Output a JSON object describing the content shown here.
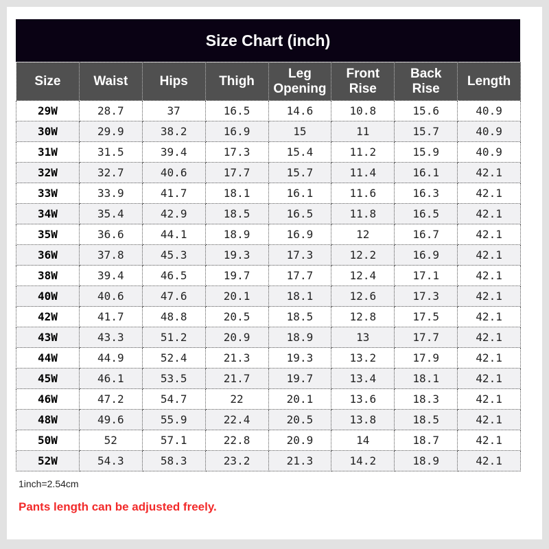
{
  "chart_data": {
    "type": "table",
    "title": "Size Chart  (inch)",
    "columns": [
      "Size",
      "Waist",
      "Hips",
      "Thigh",
      "Leg Opening",
      "Front Rise",
      "Back Rise",
      "Length"
    ],
    "rows": [
      [
        "29W",
        "28.7",
        "37",
        "16.5",
        "14.6",
        "10.8",
        "15.6",
        "40.9"
      ],
      [
        "30W",
        "29.9",
        "38.2",
        "16.9",
        "15",
        "11",
        "15.7",
        "40.9"
      ],
      [
        "31W",
        "31.5",
        "39.4",
        "17.3",
        "15.4",
        "11.2",
        "15.9",
        "40.9"
      ],
      [
        "32W",
        "32.7",
        "40.6",
        "17.7",
        "15.7",
        "11.4",
        "16.1",
        "42.1"
      ],
      [
        "33W",
        "33.9",
        "41.7",
        "18.1",
        "16.1",
        "11.6",
        "16.3",
        "42.1"
      ],
      [
        "34W",
        "35.4",
        "42.9",
        "18.5",
        "16.5",
        "11.8",
        "16.5",
        "42.1"
      ],
      [
        "35W",
        "36.6",
        "44.1",
        "18.9",
        "16.9",
        "12",
        "16.7",
        "42.1"
      ],
      [
        "36W",
        "37.8",
        "45.3",
        "19.3",
        "17.3",
        "12.2",
        "16.9",
        "42.1"
      ],
      [
        "38W",
        "39.4",
        "46.5",
        "19.7",
        "17.7",
        "12.4",
        "17.1",
        "42.1"
      ],
      [
        "40W",
        "40.6",
        "47.6",
        "20.1",
        "18.1",
        "12.6",
        "17.3",
        "42.1"
      ],
      [
        "42W",
        "41.7",
        "48.8",
        "20.5",
        "18.5",
        "12.8",
        "17.5",
        "42.1"
      ],
      [
        "43W",
        "43.3",
        "51.2",
        "20.9",
        "18.9",
        "13",
        "17.7",
        "42.1"
      ],
      [
        "44W",
        "44.9",
        "52.4",
        "21.3",
        "19.3",
        "13.2",
        "17.9",
        "42.1"
      ],
      [
        "45W",
        "46.1",
        "53.5",
        "21.7",
        "19.7",
        "13.4",
        "18.1",
        "42.1"
      ],
      [
        "46W",
        "47.2",
        "54.7",
        "22",
        "20.1",
        "13.6",
        "18.3",
        "42.1"
      ],
      [
        "48W",
        "49.6",
        "55.9",
        "22.4",
        "20.5",
        "13.8",
        "18.5",
        "42.1"
      ],
      [
        "50W",
        "52",
        "57.1",
        "22.8",
        "20.9",
        "14",
        "18.7",
        "42.1"
      ],
      [
        "52W",
        "54.3",
        "58.3",
        "23.2",
        "21.3",
        "14.2",
        "18.9",
        "42.1"
      ]
    ],
    "note": "1inch=2.54cm",
    "warning": "Pants length can be adjusted freely.",
    "colors": {
      "title_bg": "#0a0214",
      "header_bg": "#505050",
      "warning": "#f22a2a"
    }
  }
}
